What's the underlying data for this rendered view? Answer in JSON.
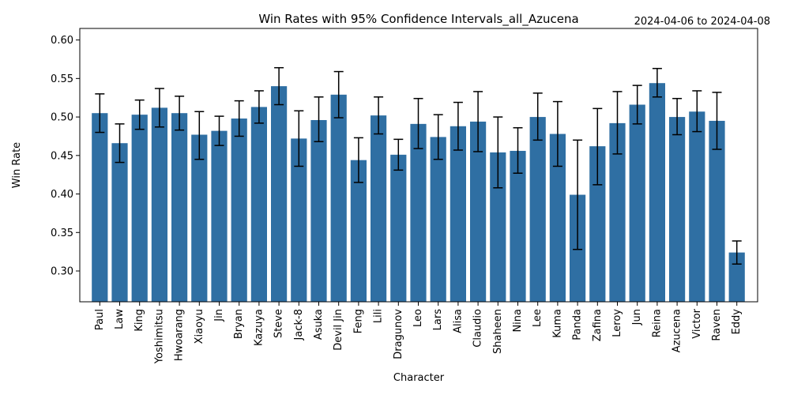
{
  "chart_data": {
    "type": "bar",
    "title": "Win Rates with 95% Confidence Intervals_all_Azucena",
    "date_range": "2024-04-06 to 2024-04-08",
    "xlabel": "Character",
    "ylabel": "Win Rate",
    "ylim": [
      0.26,
      0.615
    ],
    "yticks": [
      "0.30",
      "0.35",
      "0.40",
      "0.45",
      "0.50",
      "0.55",
      "0.60"
    ],
    "bar_color": "#2f6fa3",
    "grid": false,
    "categories": [
      "Paul",
      "Law",
      "King",
      "Yoshimitsu",
      "Hwoarang",
      "Xiaoyu",
      "Jin",
      "Bryan",
      "Kazuya",
      "Steve",
      "Jack-8",
      "Asuka",
      "Devil Jin",
      "Feng",
      "Lili",
      "Dragunov",
      "Leo",
      "Lars",
      "Alisa",
      "Claudio",
      "Shaheen",
      "Nina",
      "Lee",
      "Kuma",
      "Panda",
      "Zafina",
      "Leroy",
      "Jun",
      "Reina",
      "Azucena",
      "Victor",
      "Raven",
      "Eddy"
    ],
    "values": [
      0.505,
      0.466,
      0.503,
      0.512,
      0.505,
      0.477,
      0.482,
      0.498,
      0.513,
      0.54,
      0.472,
      0.496,
      0.529,
      0.444,
      0.502,
      0.451,
      0.491,
      0.474,
      0.488,
      0.494,
      0.454,
      0.456,
      0.5,
      0.478,
      0.399,
      0.462,
      0.492,
      0.516,
      0.544,
      0.5,
      0.507,
      0.495,
      0.324
    ],
    "ci_lower": [
      0.48,
      0.441,
      0.484,
      0.487,
      0.483,
      0.445,
      0.463,
      0.475,
      0.492,
      0.516,
      0.436,
      0.468,
      0.499,
      0.415,
      0.478,
      0.431,
      0.459,
      0.445,
      0.457,
      0.455,
      0.408,
      0.427,
      0.47,
      0.436,
      0.328,
      0.412,
      0.452,
      0.491,
      0.526,
      0.477,
      0.481,
      0.458,
      0.309
    ],
    "ci_upper": [
      0.53,
      0.491,
      0.522,
      0.537,
      0.527,
      0.507,
      0.501,
      0.521,
      0.534,
      0.564,
      0.508,
      0.526,
      0.559,
      0.473,
      0.526,
      0.471,
      0.524,
      0.503,
      0.519,
      0.533,
      0.5,
      0.486,
      0.531,
      0.52,
      0.47,
      0.511,
      0.533,
      0.541,
      0.563,
      0.524,
      0.534,
      0.532,
      0.339
    ]
  }
}
